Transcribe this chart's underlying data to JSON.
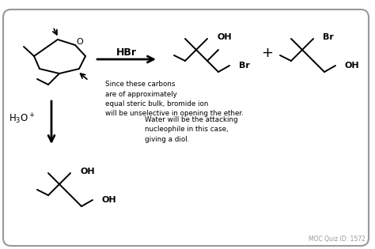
{
  "background_color": "#ffffff",
  "border_color": "#999999",
  "text_color": "#000000",
  "gray_text_color": "#999999",
  "hbr_label": "HBr",
  "h3o_label": "H$_3$O$^+$",
  "annotation1": "Since these carbons\nare of approximately\nequal steric bulk, bromide ion\nwill be unselective in opening the ether.",
  "annotation2": "Water will be the attacking\nnucleophile in this case,\ngiving a diol.",
  "moc_label": "MOC Quiz ID: 1572",
  "plus_label": "+"
}
